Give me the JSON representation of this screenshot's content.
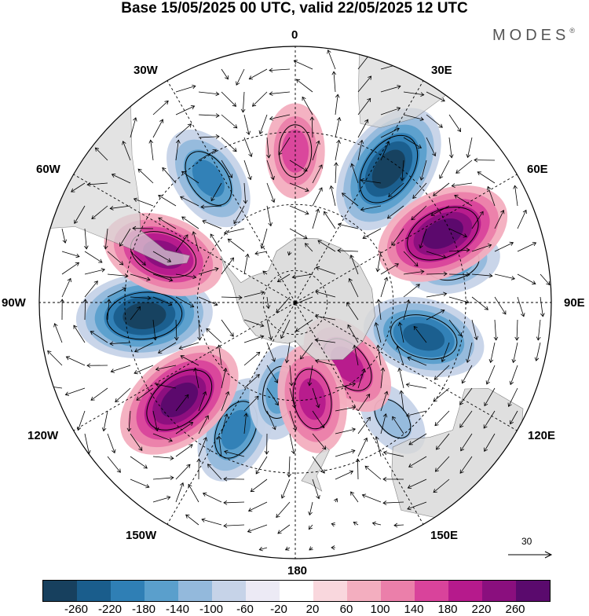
{
  "title": "Base 15/05/2025 00 UTC, valid 22/05/2025 12 UTC",
  "brand": "MODES",
  "brand_mark": "®",
  "longitude_labels": {
    "top": "0",
    "top_right": "30E",
    "right_upper": "60E",
    "right": "90E",
    "right_lower": "120E",
    "bottom_right": "150E",
    "bottom": "180",
    "bottom_left": "150W",
    "left_lower": "120W",
    "left": "90W",
    "left_upper": "60W",
    "top_left": "30W"
  },
  "vector_scale_label": "30",
  "colorbar": {
    "colors": [
      "#17405e",
      "#1a5d8c",
      "#2f7fb5",
      "#5a9fcc",
      "#93b9dc",
      "#c6d3e8",
      "#eceaf5",
      "#ffffff",
      "#f9d7dd",
      "#f3aebf",
      "#eb7faa",
      "#d9439b",
      "#b61a8c",
      "#8a0f7e",
      "#5a0a6d"
    ],
    "ticks": [
      "-260",
      "-220",
      "-180",
      "-140",
      "-100",
      "-60",
      "-20",
      "20",
      "60",
      "100",
      "140",
      "180",
      "220",
      "260"
    ]
  },
  "anomaly_centers": [
    {
      "sign": "neg",
      "level": -180,
      "lat": -45,
      "lon": -35
    },
    {
      "sign": "neg",
      "level": -260,
      "lat": -42,
      "lon": 35
    },
    {
      "sign": "neg",
      "level": -260,
      "lat": -45,
      "lon": -95
    },
    {
      "sign": "neg",
      "level": -220,
      "lat": -50,
      "lon": 105
    },
    {
      "sign": "neg",
      "level": -140,
      "lat": -42,
      "lon": 76
    },
    {
      "sign": "neg",
      "level": -180,
      "lat": -48,
      "lon": -155
    },
    {
      "sign": "neg",
      "level": -140,
      "lat": -62,
      "lon": -170
    },
    {
      "sign": "neg",
      "level": -100,
      "lat": -45,
      "lon": 140
    },
    {
      "sign": "pos",
      "level": 140,
      "lat": -45,
      "lon": 0
    },
    {
      "sign": "pos",
      "level": 220,
      "lat": -48,
      "lon": -70
    },
    {
      "sign": "pos",
      "level": 260,
      "lat": -42,
      "lon": 65
    },
    {
      "sign": "pos",
      "level": 260,
      "lat": -45,
      "lon": -130
    },
    {
      "sign": "pos",
      "level": 180,
      "lat": -65,
      "lon": 140
    },
    {
      "sign": "pos",
      "level": 180,
      "lat": -60,
      "lon": 170
    }
  ]
}
